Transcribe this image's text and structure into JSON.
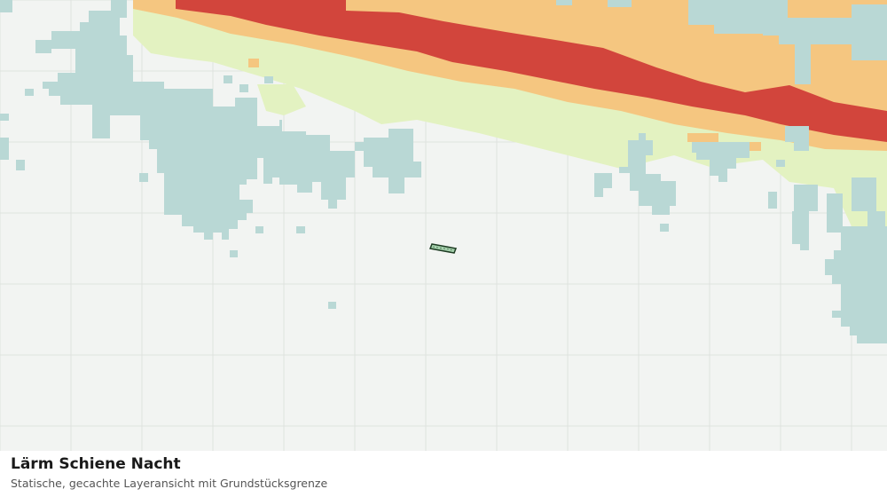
{
  "map": {
    "title": "Lärm Schiene Nacht",
    "subtitle": "Statische, gecachte Layeransicht mit Grundstücksgrenze",
    "colors": {
      "background": "#f2f4f2",
      "grid": "#dfe3df",
      "water": "#b9d8d5",
      "noise_low": "#e3f2c1",
      "noise_medium": "#f5c680",
      "noise_high": "#d2453c",
      "parcel_fill": "#a8d5b0",
      "parcel_outline": "#1f3d24"
    },
    "legend_shown": false,
    "grid_shown": true
  }
}
